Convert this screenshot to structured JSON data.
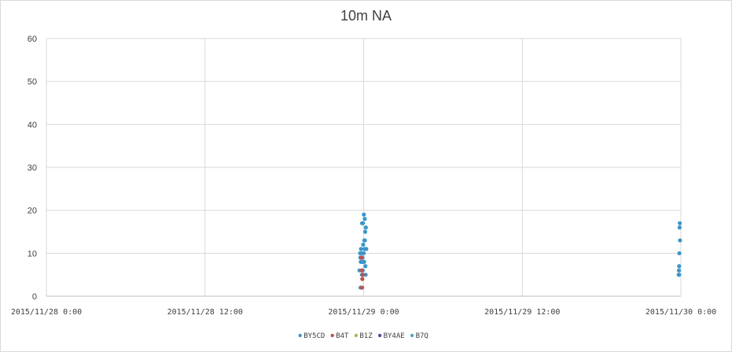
{
  "chart_data": {
    "type": "scatter",
    "title": "10m NA",
    "xlabel": "",
    "ylabel": "",
    "ylim": [
      0,
      60
    ],
    "yticks": [
      0,
      10,
      20,
      30,
      40,
      50,
      60
    ],
    "xlim": [
      "2015-11-28T00:00",
      "2015-11-30T00:00"
    ],
    "xticks": [
      {
        "value": "2015-11-28T00:00",
        "label": "2015/11/28 0:00"
      },
      {
        "value": "2015-11-28T12:00",
        "label": "2015/11/28 12:00"
      },
      {
        "value": "2015-11-29T00:00",
        "label": "2015/11/29 0:00"
      },
      {
        "value": "2015-11-29T12:00",
        "label": "2015/11/29 12:00"
      },
      {
        "value": "2015-11-30T00:00",
        "label": "2015/11/30 0:00"
      }
    ],
    "grid": true,
    "legend_position": "bottom",
    "series": [
      {
        "name": "BY5CD",
        "color": "#3a96c9",
        "points": [
          {
            "x": "2015-11-28T23:41",
            "y": 6
          },
          {
            "x": "2015-11-28T23:44",
            "y": 10
          },
          {
            "x": "2015-11-28T23:45",
            "y": 9
          },
          {
            "x": "2015-11-28T23:46",
            "y": 2
          },
          {
            "x": "2015-11-28T23:47",
            "y": 8
          },
          {
            "x": "2015-11-28T23:48",
            "y": 11
          },
          {
            "x": "2015-11-28T23:50",
            "y": 8
          },
          {
            "x": "2015-11-28T23:51",
            "y": 10
          },
          {
            "x": "2015-11-28T23:52",
            "y": 5
          },
          {
            "x": "2015-11-28T23:53",
            "y": 17
          },
          {
            "x": "2015-11-28T23:54",
            "y": 8
          },
          {
            "x": "2015-11-28T23:55",
            "y": 9
          },
          {
            "x": "2015-11-28T23:56",
            "y": 6
          },
          {
            "x": "2015-11-28T23:57",
            "y": 17
          },
          {
            "x": "2015-11-28T23:58",
            "y": 12
          },
          {
            "x": "2015-11-28T23:59",
            "y": 8
          },
          {
            "x": "2015-11-29T00:00",
            "y": 10
          },
          {
            "x": "2015-11-29T00:01",
            "y": 19
          },
          {
            "x": "2015-11-29T00:02",
            "y": 8
          },
          {
            "x": "2015-11-29T00:03",
            "y": 13
          },
          {
            "x": "2015-11-29T00:04",
            "y": 11
          },
          {
            "x": "2015-11-29T00:05",
            "y": 18
          },
          {
            "x": "2015-11-29T00:06",
            "y": 13
          },
          {
            "x": "2015-11-29T00:07",
            "y": 15
          },
          {
            "x": "2015-11-29T00:08",
            "y": 7
          },
          {
            "x": "2015-11-29T00:09",
            "y": 5
          },
          {
            "x": "2015-11-29T00:10",
            "y": 16
          },
          {
            "x": "2015-11-29T00:12",
            "y": 11
          },
          {
            "x": "2015-11-29T23:50",
            "y": 5
          },
          {
            "x": "2015-11-29T23:51",
            "y": 6
          },
          {
            "x": "2015-11-29T23:52",
            "y": 5
          },
          {
            "x": "2015-11-29T23:52",
            "y": 7
          },
          {
            "x": "2015-11-29T23:53",
            "y": 10
          },
          {
            "x": "2015-11-29T23:54",
            "y": 16
          },
          {
            "x": "2015-11-29T23:55",
            "y": 17
          },
          {
            "x": "2015-11-29T23:56",
            "y": 13
          }
        ]
      },
      {
        "name": "B4T",
        "color": "#c0504d",
        "points": [
          {
            "x": "2015-11-28T23:50",
            "y": 9
          },
          {
            "x": "2015-11-28T23:52",
            "y": 6
          },
          {
            "x": "2015-11-28T23:53",
            "y": 2
          },
          {
            "x": "2015-11-28T23:54",
            "y": 4
          },
          {
            "x": "2015-11-28T23:56",
            "y": 5
          }
        ]
      },
      {
        "name": "B1Z",
        "color": "#9bbb59",
        "points": []
      },
      {
        "name": "BY4AE",
        "color": "#4f4f9f",
        "points": []
      },
      {
        "name": "B7Q",
        "color": "#4bacc6",
        "points": []
      }
    ]
  }
}
